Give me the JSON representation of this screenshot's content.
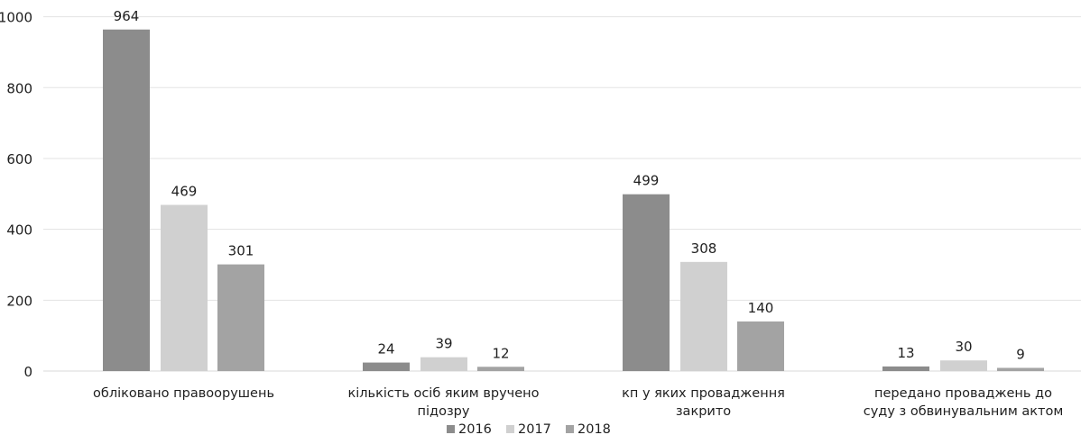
{
  "chart_data": {
    "type": "bar",
    "categories": [
      [
        "обліковано правоорушень"
      ],
      [
        "кількість осіб яким вручено",
        "підозру"
      ],
      [
        "кп у яких провадження",
        "закрито"
      ],
      [
        "передано проваджень до",
        "суду з обвинувальним актом"
      ]
    ],
    "series": [
      {
        "name": "2016",
        "values": [
          964,
          24,
          499,
          13
        ],
        "color": "#8c8c8c"
      },
      {
        "name": "2017",
        "values": [
          469,
          39,
          308,
          30
        ],
        "color": "#d0d0d0"
      },
      {
        "name": "2018",
        "values": [
          301,
          12,
          140,
          9
        ],
        "color": "#a3a3a3"
      }
    ],
    "y_tick_labels": [
      "0",
      "200",
      "400",
      "600",
      "800",
      "1000"
    ],
    "ylim": [
      0,
      1000
    ],
    "grid": true,
    "legend_position": "bottom",
    "title": "",
    "xlabel": "",
    "ylabel": ""
  }
}
